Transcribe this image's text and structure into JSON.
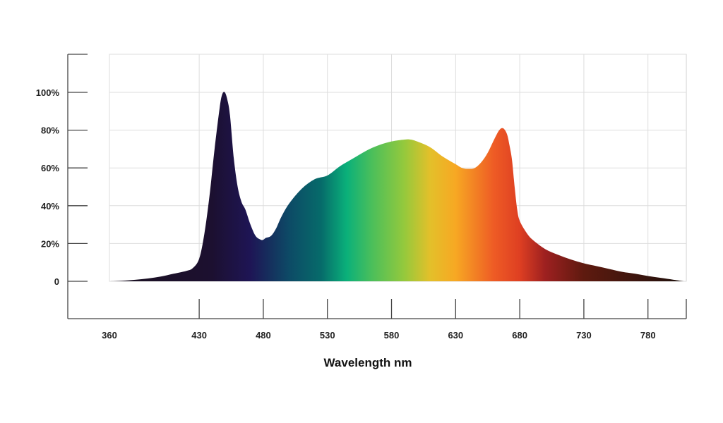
{
  "chart_data": {
    "type": "area",
    "title": "",
    "xlabel": "Wavelength nm",
    "ylabel": "",
    "x_ticks": [
      "360",
      "430",
      "480",
      "530",
      "580",
      "630",
      "680",
      "730",
      "780"
    ],
    "y_ticks": [
      "0",
      "20%",
      "40%",
      "60%",
      "80%",
      "100%"
    ],
    "y_tick_values": [
      0,
      20,
      40,
      60,
      80,
      100
    ],
    "xlim": [
      360,
      810
    ],
    "ylim": [
      0,
      120
    ],
    "grid": true,
    "fill": "visible spectrum gradient",
    "series": [
      {
        "x": [
          360,
          370,
          380,
          390,
          400,
          410,
          420,
          425,
          430,
          434,
          438,
          442,
          446,
          448,
          450,
          452,
          454,
          457,
          460,
          463,
          466,
          470,
          474,
          478,
          480,
          482,
          486,
          490,
          494,
          500,
          510,
          520,
          530,
          540,
          550,
          560,
          570,
          580,
          590,
          595,
          600,
          610,
          620,
          630,
          635,
          640,
          645,
          650,
          655,
          660,
          664,
          667,
          670,
          672,
          674,
          676,
          678,
          680,
          685,
          690,
          700,
          710,
          720,
          730,
          740,
          750,
          760,
          770,
          780,
          790,
          800,
          808
        ],
        "y": [
          0,
          0.3,
          0.8,
          1.5,
          2.5,
          4,
          5.5,
          7,
          12,
          25,
          45,
          70,
          92,
          99,
          100,
          96,
          88,
          65,
          50,
          42,
          38,
          30,
          24,
          22,
          22,
          23,
          24,
          28,
          34,
          41,
          49,
          54,
          56,
          61,
          65,
          69,
          72,
          74,
          75,
          75,
          74,
          71,
          66,
          62,
          60,
          59.5,
          60,
          63,
          68,
          75,
          80,
          81,
          78,
          72,
          64,
          50,
          38,
          32,
          26,
          22,
          17,
          14,
          11.5,
          9.5,
          8,
          6.5,
          5,
          4,
          2.8,
          1.8,
          0.8,
          0
        ]
      }
    ],
    "colors": {
      "grid": "#dddddd",
      "axis": "#444444",
      "spectrum_stops": [
        {
          "nm": 360,
          "color": "#1a1020"
        },
        {
          "nm": 440,
          "color": "#1c1030"
        },
        {
          "nm": 470,
          "color": "#1e1555"
        },
        {
          "nm": 500,
          "color": "#0d4a66"
        },
        {
          "nm": 525,
          "color": "#066b6a"
        },
        {
          "nm": 545,
          "color": "#0ab07a"
        },
        {
          "nm": 565,
          "color": "#4cbf5a"
        },
        {
          "nm": 590,
          "color": "#95c93c"
        },
        {
          "nm": 610,
          "color": "#e3c02a"
        },
        {
          "nm": 630,
          "color": "#f7a823"
        },
        {
          "nm": 660,
          "color": "#ee5b25"
        },
        {
          "nm": 680,
          "color": "#de3f22"
        },
        {
          "nm": 700,
          "color": "#9d2020"
        },
        {
          "nm": 730,
          "color": "#5e1a0f"
        },
        {
          "nm": 808,
          "color": "#1e100c"
        }
      ]
    }
  }
}
